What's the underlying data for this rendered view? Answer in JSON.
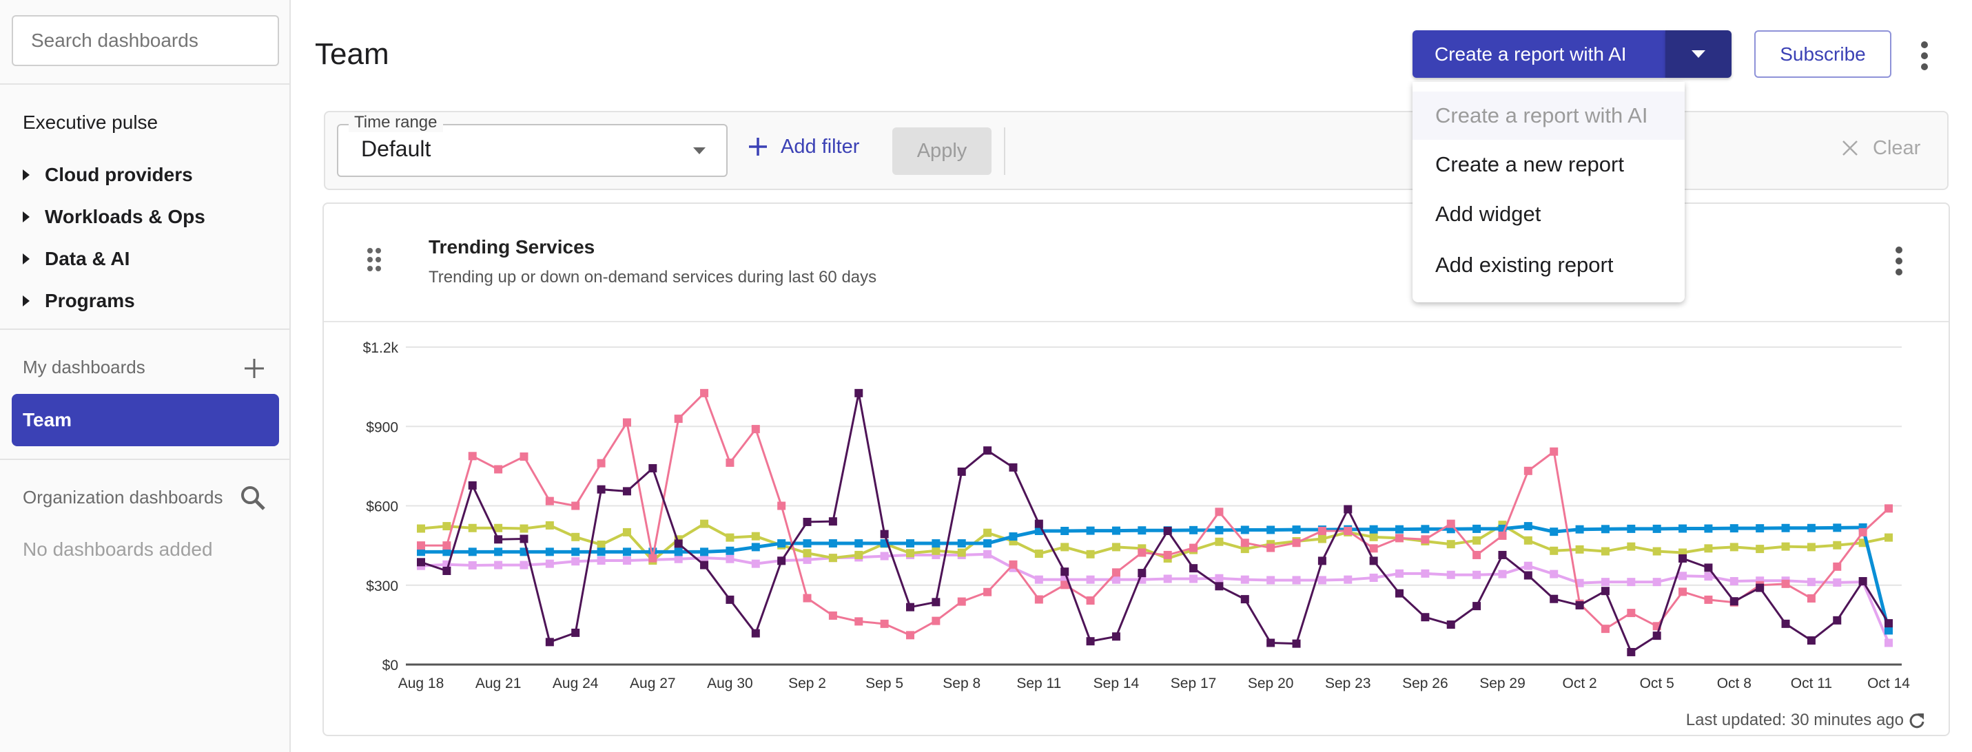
{
  "sidebar": {
    "search_placeholder": "Search dashboards",
    "executive": "Executive pulse",
    "groups": [
      {
        "label": "Cloud providers"
      },
      {
        "label": "Workloads & Ops"
      },
      {
        "label": "Data & AI"
      },
      {
        "label": "Programs"
      }
    ],
    "my_dashboards": "My dashboards",
    "my_items": [
      {
        "label": "Team",
        "active": true
      }
    ],
    "org_dashboards": "Organization dashboards",
    "org_empty": "No dashboards added"
  },
  "header": {
    "title": "Team",
    "create_ai": "Create a report with AI",
    "subscribe": "Subscribe"
  },
  "menu": {
    "items": [
      {
        "label": "Create a report with AI",
        "disabled": true
      },
      {
        "label": "Create a new report"
      },
      {
        "label": "Add widget"
      },
      {
        "label": "Add existing report"
      }
    ]
  },
  "filters": {
    "time_range_label": "Time range",
    "time_range_value": "Default",
    "add_filter": "Add filter",
    "apply": "Apply",
    "clear": "Clear"
  },
  "widget": {
    "title": "Trending Services",
    "subtitle": "Trending up or down on-demand services during last 60 days",
    "last_updated": "Last updated: 30 minutes ago"
  },
  "colors": {
    "primary": "#3b41b5",
    "primary_dark": "#2a2f82"
  },
  "chart_data": {
    "type": "line",
    "title": "Trending Services",
    "xlabel": "",
    "ylabel": "",
    "ylim": [
      0,
      1200
    ],
    "yticks": [
      {
        "v": 0,
        "label": "$0"
      },
      {
        "v": 300,
        "label": "$300"
      },
      {
        "v": 600,
        "label": "$600"
      },
      {
        "v": 900,
        "label": "$900"
      },
      {
        "v": 1200,
        "label": "$1.2k"
      }
    ],
    "x_start": "Aug 18",
    "x_count": 58,
    "xticks": [
      {
        "i": 0,
        "label": "Aug 18"
      },
      {
        "i": 3,
        "label": "Aug 21"
      },
      {
        "i": 6,
        "label": "Aug 24"
      },
      {
        "i": 9,
        "label": "Aug 27"
      },
      {
        "i": 12,
        "label": "Aug 30"
      },
      {
        "i": 15,
        "label": "Sep 2"
      },
      {
        "i": 18,
        "label": "Sep 5"
      },
      {
        "i": 21,
        "label": "Sep 8"
      },
      {
        "i": 24,
        "label": "Sep 11"
      },
      {
        "i": 27,
        "label": "Sep 14"
      },
      {
        "i": 30,
        "label": "Sep 17"
      },
      {
        "i": 33,
        "label": "Sep 20"
      },
      {
        "i": 36,
        "label": "Sep 23"
      },
      {
        "i": 39,
        "label": "Sep 26"
      },
      {
        "i": 42,
        "label": "Sep 29"
      },
      {
        "i": 45,
        "label": "Oct 2"
      },
      {
        "i": 48,
        "label": "Oct 5"
      },
      {
        "i": 51,
        "label": "Oct 8"
      },
      {
        "i": 54,
        "label": "Oct 11"
      },
      {
        "i": 57,
        "label": "Oct 14"
      }
    ],
    "grid": true,
    "series": [
      {
        "color": "#e4a4f0",
        "width": 4,
        "values": [
          373,
          378,
          375,
          376,
          376,
          381,
          390,
          393,
          393,
          396,
          399,
          403,
          399,
          381,
          393,
          396,
          403,
          405,
          410,
          414,
          414,
          414,
          417,
          365,
          321,
          321,
          321,
          321,
          321,
          324,
          324,
          326,
          321,
          319,
          319,
          319,
          321,
          328,
          344,
          344,
          339,
          339,
          342,
          373,
          342,
          308,
          312,
          312,
          312,
          335,
          333,
          315,
          317,
          317,
          312,
          310,
          312,
          82
        ]
      },
      {
        "color": "#c8cd4a",
        "width": 4,
        "values": [
          514,
          523,
          516,
          516,
          514,
          526,
          482,
          453,
          500,
          393,
          473,
          532,
          480,
          485,
          451,
          421,
          403,
          414,
          457,
          421,
          430,
          423,
          498,
          466,
          419,
          444,
          417,
          444,
          439,
          401,
          433,
          464,
          437,
          455,
          466,
          475,
          500,
          482,
          478,
          466,
          455,
          469,
          528,
          469,
          430,
          435,
          428,
          446,
          428,
          423,
          439,
          444,
          437,
          446,
          444,
          451,
          460,
          480
        ]
      },
      {
        "color": "#0a8fd6",
        "width": 5,
        "values": [
          426,
          426,
          426,
          426,
          426,
          426,
          426,
          426,
          426,
          426,
          426,
          426,
          430,
          444,
          458,
          458,
          458,
          458,
          458,
          458,
          458,
          458,
          458,
          484,
          505,
          505,
          506,
          506,
          507,
          507,
          508,
          508,
          509,
          509,
          510,
          510,
          511,
          511,
          511,
          512,
          512,
          513,
          513,
          523,
          502,
          511,
          512,
          513,
          513,
          514,
          514,
          515,
          515,
          516,
          516,
          517,
          518,
          129
        ]
      },
      {
        "color": "#f07595",
        "width": 3,
        "values": [
          450,
          450,
          788,
          738,
          786,
          618,
          600,
          761,
          915,
          402,
          929,
          1026,
          763,
          890,
          600,
          251,
          185,
          163,
          154,
          111,
          165,
          238,
          274,
          378,
          246,
          301,
          242,
          348,
          423,
          414,
          441,
          577,
          460,
          441,
          460,
          505,
          505,
          439,
          478,
          473,
          532,
          414,
          487,
          732,
          805,
          230,
          135,
          195,
          145,
          275,
          245,
          235,
          300,
          305,
          250,
          370,
          500,
          590
        ]
      },
      {
        "color": "#4e1457",
        "width": 3,
        "values": [
          387,
          354,
          677,
          473,
          475,
          85,
          120,
          662,
          655,
          742,
          457,
          376,
          245,
          118,
          392,
          539,
          541,
          1026,
          493,
          217,
          236,
          729,
          809,
          745,
          532,
          351,
          88,
          106,
          346,
          505,
          364,
          296,
          247,
          82,
          79,
          392,
          587,
          392,
          269,
          179,
          151,
          221,
          414,
          337,
          248,
          224,
          278,
          47,
          109,
          401,
          366,
          239,
          290,
          154,
          91,
          167,
          315,
          156
        ]
      }
    ]
  }
}
